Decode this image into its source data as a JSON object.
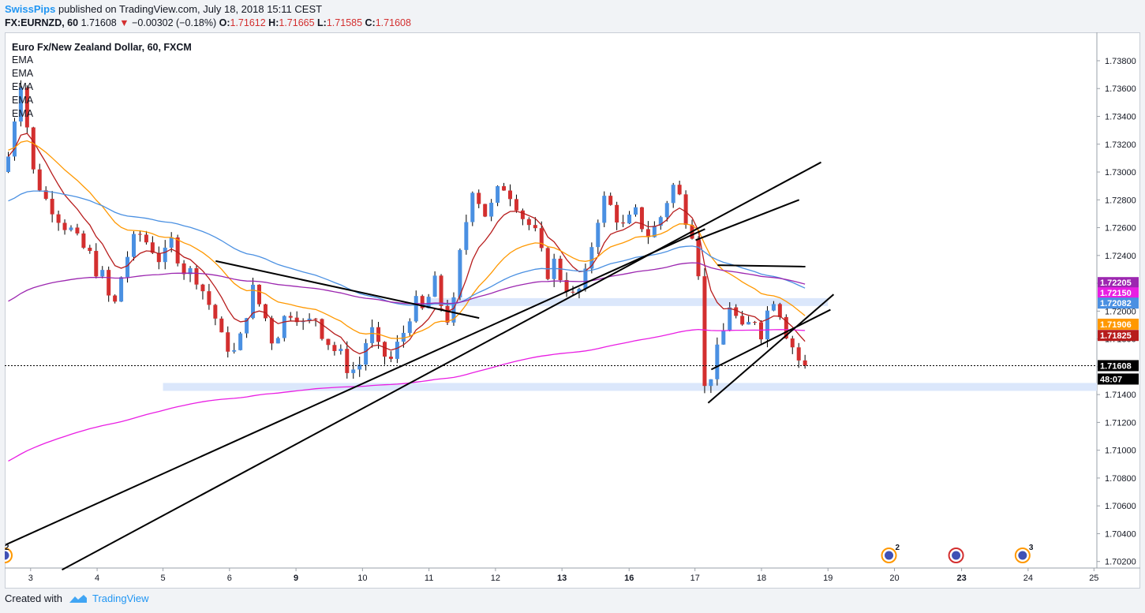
{
  "header": {
    "author": "SwissPips",
    "published_text": "published on TradingView.com, July 18, 2018 15:11 CEST",
    "symbol": "FX:EURNZD, 60",
    "last": "1.71608",
    "change_arrow": "▼",
    "change": "−0.00302 (−0.18%)",
    "o_label": "O:",
    "o": "1.71612",
    "h_label": "H:",
    "h": "1.71665",
    "l_label": "L:",
    "l": "1.71585",
    "c_label": "C:",
    "c": "1.71608"
  },
  "legend": {
    "title": "Euro Fx/New Zealand Dollar, 60, FXCM",
    "indicators": [
      "EMA",
      "EMA",
      "EMA",
      "EMA",
      "EMA"
    ]
  },
  "price_labels": [
    {
      "text": "1.72205",
      "color": "#9c27b0"
    },
    {
      "text": "1.72150",
      "color": "#e91ee3"
    },
    {
      "text": "1.72082",
      "color": "#4a90e2"
    },
    {
      "text": "1.71906",
      "color": "#ff9800"
    },
    {
      "text": "1.71825",
      "color": "#b71c1c"
    },
    {
      "text": "1.71608",
      "color": "#000000"
    },
    {
      "text": "48:07",
      "color": "#000000"
    }
  ],
  "events": [
    {
      "day": "20",
      "count": "2",
      "icon": "calendar-event-icon"
    },
    {
      "day": "21",
      "count": "2",
      "icon": "calendar-event-icon"
    },
    {
      "day": "23",
      "count": "",
      "icon": "calendar-event-icon"
    },
    {
      "day": "24",
      "count": "3",
      "icon": "calendar-event-icon"
    }
  ],
  "footer": {
    "created_with": "Created with",
    "brand": "TradingView"
  },
  "colors": {
    "up": "#4a90e2",
    "down": "#d32f2f",
    "ema_fast": "#b71c1c",
    "ema_mid": "#ff9800",
    "ema_slow": "#4a90e2",
    "ema_slower": "#9c27b0",
    "ema_slowest": "#e91ee3",
    "zone": "#dbe7fb"
  },
  "chart_data": {
    "type": "candlestick",
    "title": "Euro Fx/New Zealand Dollar, 60, FXCM",
    "y_ticks": [
      "1.73800",
      "1.73600",
      "1.73400",
      "1.73200",
      "1.73000",
      "1.72800",
      "1.72600",
      "1.72400",
      "1.72200",
      "1.72000",
      "1.71800",
      "1.71600",
      "1.71400",
      "1.71200",
      "1.71000",
      "1.70800",
      "1.70600",
      "1.70400",
      "1.70200"
    ],
    "ylim": [
      1.7017,
      1.7397
    ],
    "x_ticks": [
      "3",
      "4",
      "5",
      "6",
      "9",
      "10",
      "11",
      "12",
      "13",
      "16",
      "17",
      "18",
      "19",
      "20",
      "23",
      "24",
      "25"
    ],
    "bold_x_ticks": [
      "9",
      "13",
      "16",
      "23"
    ],
    "last_price": 1.71608,
    "close_path": [
      [
        0.2,
        1.73
      ],
      [
        1.0,
        1.733
      ],
      [
        1.8,
        1.7345
      ],
      [
        2.3,
        1.737
      ],
      [
        3.0,
        1.7355
      ],
      [
        3.8,
        1.732
      ],
      [
        4.5,
        1.73
      ],
      [
        5.5,
        1.729
      ],
      [
        6.5,
        1.728
      ],
      [
        7.5,
        1.7275
      ],
      [
        8.5,
        1.7268
      ],
      [
        9.5,
        1.7262
      ],
      [
        10.5,
        1.7258
      ],
      [
        11.5,
        1.725
      ],
      [
        12.5,
        1.7245
      ],
      [
        13.5,
        1.724
      ],
      [
        14.5,
        1.723
      ],
      [
        15.5,
        1.7225
      ],
      [
        16.5,
        1.721
      ],
      [
        17.5,
        1.7205
      ],
      [
        18.5,
        1.7225
      ],
      [
        19.5,
        1.724
      ],
      [
        20.5,
        1.725
      ],
      [
        21.5,
        1.7255
      ],
      [
        22.5,
        1.725
      ],
      [
        23.5,
        1.7245
      ],
      [
        24.5,
        1.7238
      ],
      [
        25.5,
        1.724
      ],
      [
        26.5,
        1.725
      ],
      [
        27.5,
        1.724
      ],
      [
        28.5,
        1.723
      ],
      [
        29.5,
        1.7228
      ],
      [
        30.5,
        1.7225
      ],
      [
        31.5,
        1.7215
      ],
      [
        32.5,
        1.7205
      ],
      [
        33.5,
        1.7195
      ],
      [
        34.5,
        1.718
      ],
      [
        35.5,
        1.7175
      ],
      [
        36.5,
        1.717
      ],
      [
        37.5,
        1.718
      ],
      [
        38.5,
        1.72
      ],
      [
        39.5,
        1.7215
      ],
      [
        40.5,
        1.7205
      ],
      [
        41.5,
        1.7195
      ],
      [
        42.5,
        1.718
      ],
      [
        43.5,
        1.7185
      ],
      [
        44.5,
        1.7195
      ],
      [
        45.5,
        1.72
      ],
      [
        46.5,
        1.7198
      ],
      [
        47.5,
        1.719
      ],
      [
        48.5,
        1.7192
      ],
      [
        49.5,
        1.7196
      ],
      [
        50.5,
        1.7185
      ],
      [
        51.5,
        1.7178
      ],
      [
        52.5,
        1.7172
      ],
      [
        53.5,
        1.7168
      ],
      [
        54.5,
        1.716
      ],
      [
        55.5,
        1.7158
      ],
      [
        56.5,
        1.7162
      ],
      [
        57.5,
        1.7178
      ],
      [
        58.5,
        1.7185
      ],
      [
        59.5,
        1.7172
      ],
      [
        60.5,
        1.7168
      ],
      [
        61.5,
        1.7165
      ],
      [
        62.5,
        1.7175
      ],
      [
        63.5,
        1.7185
      ],
      [
        64.5,
        1.7198
      ],
      [
        65.5,
        1.7205
      ],
      [
        66.5,
        1.72
      ],
      [
        67.5,
        1.721
      ],
      [
        68.5,
        1.722
      ],
      [
        69.5,
        1.7205
      ],
      [
        70.5,
        1.7195
      ],
      [
        71.5,
        1.7205
      ],
      [
        72.5,
        1.724
      ],
      [
        73.5,
        1.7265
      ],
      [
        74.5,
        1.729
      ],
      [
        75.5,
        1.728
      ],
      [
        76.5,
        1.727
      ],
      [
        77.5,
        1.7275
      ],
      [
        78.5,
        1.7285
      ],
      [
        79.5,
        1.729
      ],
      [
        80.5,
        1.7285
      ],
      [
        81.5,
        1.7278
      ],
      [
        82.5,
        1.7268
      ],
      [
        83.5,
        1.7262
      ],
      [
        84.5,
        1.7255
      ],
      [
        85.5,
        1.724
      ],
      [
        86.5,
        1.7228
      ],
      [
        87.5,
        1.7235
      ],
      [
        88.5,
        1.7225
      ],
      [
        89.5,
        1.7218
      ],
      [
        90.5,
        1.721
      ],
      [
        91.5,
        1.7215
      ],
      [
        92.5,
        1.7225
      ],
      [
        93.5,
        1.7248
      ],
      [
        94.5,
        1.7268
      ],
      [
        95.5,
        1.728
      ],
      [
        96.5,
        1.7275
      ],
      [
        97.5,
        1.7268
      ],
      [
        98.5,
        1.726
      ],
      [
        99.5,
        1.7265
      ],
      [
        100.5,
        1.727
      ],
      [
        101.5,
        1.7262
      ],
      [
        102.5,
        1.7255
      ],
      [
        103.5,
        1.726
      ],
      [
        104.5,
        1.7268
      ],
      [
        105.5,
        1.728
      ],
      [
        106.5,
        1.729
      ],
      [
        107.5,
        1.7282
      ],
      [
        108.5,
        1.7268
      ],
      [
        109.5,
        1.7258
      ],
      [
        110.5,
        1.723
      ],
      [
        111.0,
        1.7165
      ],
      [
        111.6,
        1.714
      ],
      [
        112.5,
        1.7155
      ],
      [
        113.5,
        1.717
      ],
      [
        114.5,
        1.7185
      ],
      [
        115.5,
        1.7205
      ],
      [
        116.5,
        1.7195
      ],
      [
        117.5,
        1.7185
      ],
      [
        118.5,
        1.719
      ],
      [
        119.5,
        1.7195
      ],
      [
        120.5,
        1.7185
      ],
      [
        121.5,
        1.72
      ],
      [
        122.5,
        1.721
      ],
      [
        123.5,
        1.72
      ],
      [
        124.5,
        1.7185
      ],
      [
        125.5,
        1.7175
      ],
      [
        126.5,
        1.7165
      ],
      [
        127.0,
        1.71608
      ]
    ],
    "support_zones": [
      {
        "from_day": "5",
        "to": "right_edge",
        "level": 1.71455
      },
      {
        "from_day": "11",
        "to_day": "19",
        "level": 1.72065
      }
    ],
    "trendlines": [
      {
        "from": [
          0.0,
          1.7032
        ],
        "to": [
          111.5,
          1.7259
        ]
      },
      {
        "from": [
          9.0,
          1.7014
        ],
        "to": [
          130.0,
          1.7307
        ]
      },
      {
        "from": [
          33.5,
          1.7236
        ],
        "to": [
          75.5,
          1.7195
        ]
      },
      {
        "from": [
          110.0,
          1.7251
        ],
        "to": [
          126.5,
          1.728
        ]
      },
      {
        "from": [
          113.5,
          1.7233
        ],
        "to": [
          127.5,
          1.7232
        ]
      },
      {
        "from": [
          112.5,
          1.7158
        ],
        "to": [
          131.5,
          1.7201
        ]
      },
      {
        "from": [
          112.0,
          1.7134
        ],
        "to": [
          132.0,
          1.7212
        ]
      }
    ]
  }
}
